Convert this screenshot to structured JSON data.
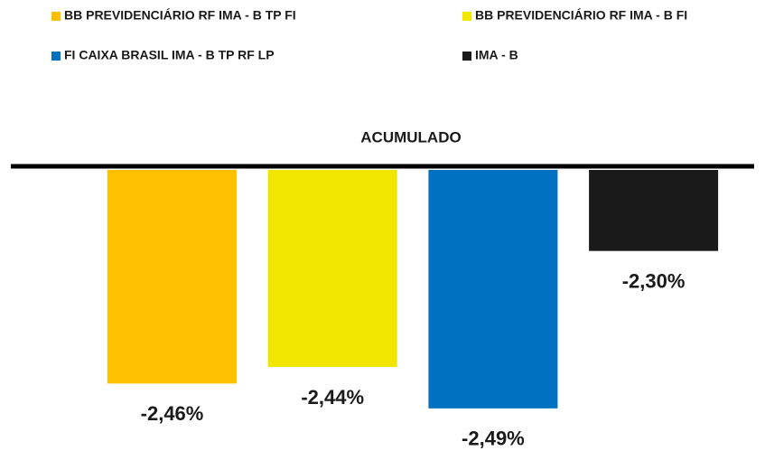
{
  "chart_data": {
    "type": "bar",
    "categories": [
      "ACUMULADO"
    ],
    "series": [
      {
        "name": "BB PREVIDENCIÁRIO RF IMA - B TP FI",
        "color": "#ffc000",
        "values": [
          -2.46
        ],
        "value_labels": [
          "-2,46%"
        ]
      },
      {
        "name": "BB PREVIDENCIÁRIO RF IMA - B FI",
        "color": "#f0e600",
        "values": [
          -2.44
        ],
        "value_labels": [
          "-2,44%"
        ]
      },
      {
        "name": "FI CAIXA BRASIL IMA - B TP RF LP",
        "color": "#0070c0",
        "values": [
          -2.49
        ],
        "value_labels": [
          "-2,49%"
        ]
      },
      {
        "name": "IMA - B",
        "color": "#1a1a1a",
        "values": [
          -2.3
        ],
        "value_labels": [
          "-2,30%"
        ]
      }
    ],
    "ylim": [
      -2.5,
      -2.2
    ]
  }
}
